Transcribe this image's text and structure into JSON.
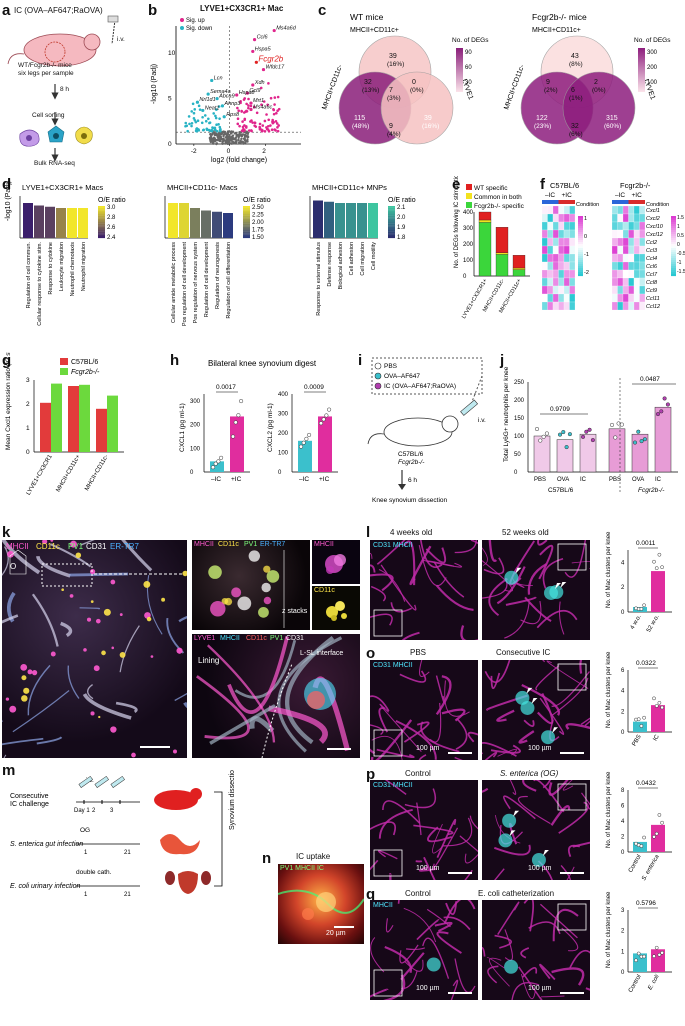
{
  "panels": {
    "a": {
      "label": "a",
      "title": "IC (OVA–AF647;RaOVA)",
      "mice": "WT/Fcgr2b-/- mice",
      "legs": "six legs per sample",
      "iv": "i.v.",
      "time": "8 h",
      "sort": "Cell sorting",
      "rnaseq": "Bulk RNA-seq"
    },
    "b": {
      "label": "b",
      "title": "LYVE1+CX3CR1+ Mac",
      "legend_up": "Sig. up",
      "legend_down": "Sig. down",
      "xlabel": "log2 (fold change)",
      "ylabel": "-log10 (Padj)",
      "genes": [
        "Ms4a6d",
        "Ccl6",
        "Hspa5",
        "Fcgr2b",
        "Wfdc17",
        "Lcn",
        "Xdh",
        "Hspa8",
        "Ccl9",
        "Atp8",
        "Abca9",
        "Sema4a",
        "Mrt1",
        "Ms4a6c",
        "Nrl1d1",
        "Neat1",
        "Jun",
        "Fos",
        "Hrnp",
        "Rps8",
        "Ahnp3"
      ],
      "xticks": [
        "-2",
        "0",
        "2"
      ],
      "yticks": [
        "0",
        "5",
        "10"
      ],
      "colors": {
        "up": "#e0258c",
        "down": "#29b3c4",
        "ns": "#666666",
        "fcgr2b": "#e02020"
      }
    },
    "c": {
      "label": "c",
      "wt_title": "WT mice",
      "ko_title": "Fcgr2b-/- mice",
      "set_top": "MHCII+CD11c+",
      "set_left": "MHCII+CD11c-",
      "set_right": "LYVE1",
      "legend_title": "No. of DEGs",
      "wt_values": [
        "39\n(16%)",
        "32\n(13%)",
        "0\n(0%)",
        "7\n(3%)",
        "115\n(48%)",
        "39\n(16%)",
        "9\n(4%)"
      ],
      "ko_values": [
        "43\n(8%)",
        "9\n(2%)",
        "2\n(0%)",
        "6\n(1%)",
        "122\n(23%)",
        "315\n(60%)",
        "32\n(6%)"
      ],
      "wt_ticks": [
        "90",
        "60",
        "30"
      ],
      "ko_ticks": [
        "300",
        "200",
        "100"
      ]
    },
    "d": {
      "label": "d",
      "ylabel": "-log10 (Padj)",
      "legend_title": "O/E ratio",
      "groups": [
        {
          "title": "LYVE1+CX3CR1+ Macs",
          "terms": [
            "Regulation of cell commun.",
            "Cellular response to cytokine stim.",
            "Response to cytokine",
            "Leukocyte migration",
            "Neutrophil chemotaxis",
            "Neutrophil migration"
          ],
          "ticks": [
            "3.0",
            "2.8",
            "2.6",
            "2.4"
          ]
        },
        {
          "title": "MHCII+CD11c- Macs",
          "terms": [
            "Cellular amide metabolic process",
            "Pos regulation of cell development",
            "Pos regulation of nervous system",
            "Regulation of cell development",
            "Regulation of neurogenesis",
            "Regulation of cell differentiation"
          ],
          "ticks": [
            "2.50",
            "2.25",
            "2.00",
            "1.75",
            "1.50"
          ]
        },
        {
          "title": "MHCII+CD11c+ MNPs",
          "terms": [
            "Response to external stimulus",
            "Defense response",
            "Biological adhesion",
            "Cell adhesion",
            "Cell migration",
            "Cell motility"
          ],
          "ticks": [
            "2.1",
            "2.0",
            "1.9",
            "1.8"
          ]
        }
      ]
    },
    "e": {
      "label": "e",
      "legend": [
        "WT specific",
        "Common in both",
        "Fcgr2b-/- specific"
      ],
      "ylabel": "No. of DEGs following IC stimulation",
      "categories": [
        "LYVE1+CX3CR1+",
        "MHCII+CD11c-",
        "MHCII+CD11c+"
      ],
      "yticks": [
        "0",
        "100",
        "200",
        "300",
        "400"
      ],
      "colors": [
        "#e02020",
        "#f2e21e",
        "#3bd63b"
      ]
    },
    "f": {
      "label": "f",
      "wt_title": "C57BL/6",
      "ko_title": "Fcgr2b-/-",
      "neg": "–IC",
      "pos": "+IC",
      "condition": "Condition",
      "genes": [
        "Cxcl1",
        "Cxcl2",
        "Cxcl10",
        "Cxcl12",
        "Ccl2",
        "Ccl3",
        "Ccl4",
        "Ccl6",
        "Ccl7",
        "Ccl8",
        "Ccl9",
        "Ccl11",
        "Ccl12"
      ],
      "wt_ticks": [
        "1",
        "0",
        "-1",
        "-2"
      ],
      "ko_ticks": [
        "1.5",
        "1",
        "0.5",
        "0",
        "-0.5",
        "-1",
        "-1.5"
      ]
    },
    "g": {
      "label": "g",
      "legend": [
        "C57BL/6",
        "Fcgr2b-/-"
      ],
      "ylabel": "Mean Cxcl1 expression ratio (IC stim/unstim)",
      "categories": [
        "LYVE1+CX3CR1",
        "MHCII+CD11c+",
        "MHCII+CD11c-"
      ],
      "yticks": [
        "0",
        "1",
        "2",
        "3"
      ]
    },
    "h": {
      "label": "h",
      "title": "Bilateral knee synovium digest",
      "cxcl1": {
        "ylabel": "CXCL1 (pg ml-1)",
        "p": "0.0017",
        "yticks": [
          "0",
          "100",
          "200",
          "300"
        ]
      },
      "cxcl2": {
        "ylabel": "CXCL2 (pg ml-1)",
        "p": "0.0009",
        "yticks": [
          "0",
          "100",
          "200",
          "300",
          "400"
        ]
      },
      "neg": "–IC",
      "pos": "+IC"
    },
    "i": {
      "label": "i",
      "legend": [
        "PBS",
        "OVA–AF647",
        "IC (OVA–AF647;RaOVA)"
      ],
      "iv": "i.v.",
      "mice": "C57BL/6",
      "mice2": "Fcgr2b-/-",
      "time": "6 h",
      "end": "Knee synovium dissection"
    },
    "j": {
      "label": "j",
      "ylabel": "Total Ly6G+ neutrophils per knee",
      "p1": "0.9709",
      "p2": "0.0487",
      "categories": [
        "PBS",
        "OVA",
        "IC",
        "PBS",
        "OVA",
        "IC"
      ],
      "groups": [
        "C57BL/6",
        "Fcgr2b-/-"
      ],
      "yticks": [
        "0",
        "50",
        "100",
        "150",
        "200",
        "250"
      ]
    },
    "k": {
      "label": "k",
      "markers": [
        "MHCII",
        "CD11c",
        "PV1",
        "CD31",
        "ER-TR7"
      ],
      "zstacks": "z stacks",
      "lining": "Lining",
      "interface": "L-SL interface",
      "o": "O",
      "markers2": [
        "LYVE1",
        "MHCII",
        "CD11c",
        "PV1",
        "CD31"
      ],
      "mhcii": "MHCII",
      "cd11c": "CD11c"
    },
    "l": {
      "label": "l",
      "left": "4 weeks old",
      "right": "52 weeks old",
      "ylabel": "No. of Mac clusters per knee",
      "p": "0.0011",
      "categories": [
        "4 w.o.",
        "52 w.o."
      ],
      "markers": "CD31 MHCII",
      "yticks": [
        "0",
        "2",
        "4"
      ]
    },
    "m": {
      "label": "m",
      "rows": [
        "Consecutive IC challenge",
        "S. enterica gut infection",
        "E. coli urinary infection"
      ],
      "iv": "i.v.",
      "og": "OG",
      "cath": "double cath.",
      "days1": [
        "Day 1",
        "2",
        "3"
      ],
      "d1": "1",
      "d21": "21",
      "end": "Synovium dissection"
    },
    "n": {
      "label": "n",
      "title": "IC uptake",
      "markers": "PV1 MHCII IC",
      "scale": "20 µm"
    },
    "o": {
      "label": "o",
      "left": "PBS",
      "right": "Consecutive IC",
      "ylabel": "No. of Mac clusters per knee",
      "p": "0.0322",
      "categories": [
        "PBS",
        "IC"
      ],
      "scale": "100 µm",
      "markers": "CD31 MHCII",
      "yticks": [
        "0",
        "2",
        "4",
        "6"
      ]
    },
    "p": {
      "label": "p",
      "left": "Control",
      "right": "S. enterica (OG)",
      "ylabel": "No. of Mac clusters per knee",
      "p": "0.0432",
      "categories": [
        "Control",
        "S. enterica"
      ],
      "scale": "100 µm",
      "markers": "CD31 MHCII",
      "yticks": [
        "0",
        "2",
        "4",
        "6",
        "8"
      ]
    },
    "q": {
      "label": "q",
      "left": "Control",
      "right": "E. coli catheterization",
      "ylabel": "No. of Mac clusters per knee",
      "p": "0.5796",
      "categories": [
        "Control",
        "E. coli"
      ],
      "scale": "100 µm",
      "markers": "MHCII",
      "yticks": [
        "0",
        "1",
        "2",
        "3"
      ]
    }
  },
  "chart_data": [
    {
      "panel": "b",
      "type": "scatter",
      "title": "LYVE1+CX3CR1+ Mac",
      "xlabel": "log2 (fold change)",
      "ylabel": "-log10 (Padj)",
      "xlim": [
        -3,
        4
      ],
      "ylim": [
        0,
        13
      ],
      "labeled_points": [
        {
          "gene": "Ms4a6d",
          "x": 2.5,
          "y": 12.5
        },
        {
          "gene": "Ccl6",
          "x": 1.4,
          "y": 11.5
        },
        {
          "gene": "Hspa5",
          "x": 1.3,
          "y": 10.2
        },
        {
          "gene": "Fcgr2b",
          "x": 1.5,
          "y": 9.0
        },
        {
          "gene": "Wfdc17",
          "x": 1.9,
          "y": 8.2
        },
        {
          "gene": "Lcn",
          "x": -1.0,
          "y": 7.0
        },
        {
          "gene": "Xdh",
          "x": 1.3,
          "y": 6.5
        },
        {
          "gene": "Ccl9",
          "x": 1.0,
          "y": 5.6
        },
        {
          "gene": "Hspa8",
          "x": 0.4,
          "y": 5.4
        },
        {
          "gene": "Mrt1",
          "x": 1.2,
          "y": 4.5
        },
        {
          "gene": "Ms4a6c",
          "x": 1.2,
          "y": 3.8
        },
        {
          "gene": "Sema4a",
          "x": -1.2,
          "y": 5.5
        },
        {
          "gene": "Abca9",
          "x": -0.7,
          "y": 5.0
        },
        {
          "gene": "Nrl1d1",
          "x": -1.8,
          "y": 4.6
        },
        {
          "gene": "Neat1",
          "x": -1.5,
          "y": 3.7
        },
        {
          "gene": "Ahnp3",
          "x": -0.4,
          "y": 4.2
        },
        {
          "gene": "Rps8",
          "x": -0.3,
          "y": 3.0
        }
      ]
    },
    {
      "panel": "d",
      "type": "bar",
      "title": "LYVE1+CX3CR1+ Macs",
      "categories": [
        "Regulation of cell commun.",
        "Cellular response to cytokine stim.",
        "Response to cytokine",
        "Leukocyte migration",
        "Neutrophil chemotaxis",
        "Neutrophil migration"
      ],
      "values": [
        1.4,
        1.3,
        1.25,
        1.2,
        1.2,
        1.2
      ],
      "oe": [
        2.4,
        2.5,
        2.5,
        2.7,
        3.0,
        3.0
      ]
    },
    {
      "panel": "d",
      "type": "bar",
      "title": "MHCII+CD11c- Macs",
      "categories": [
        "Cellular amide metabolic process",
        "Pos regulation of cell development",
        "Pos regulation of nervous system",
        "Regulation of cell development",
        "Regulation of neurogenesis",
        "Regulation of cell differentiation"
      ],
      "values": [
        1.4,
        1.4,
        1.2,
        1.1,
        1.05,
        1.0
      ],
      "oe": [
        2.5,
        2.4,
        1.9,
        1.8,
        1.6,
        1.5
      ]
    },
    {
      "panel": "d",
      "type": "bar",
      "title": "MHCII+CD11c+ MNPs",
      "categories": [
        "Response to external stimulus",
        "Defense response",
        "Biological adhesion",
        "Cell adhesion",
        "Cell migration",
        "Cell motility"
      ],
      "values": [
        1.5,
        1.45,
        1.4,
        1.4,
        1.4,
        1.4
      ],
      "oe": [
        1.8,
        1.9,
        2.0,
        2.0,
        2.0,
        2.1
      ]
    },
    {
      "panel": "e",
      "type": "bar",
      "stacked": true,
      "categories": [
        "LYVE1+CX3CR1+",
        "MHCII+CD11c-",
        "MHCII+CD11c+"
      ],
      "series": [
        {
          "name": "Fcgr2b-/- specific",
          "values": [
            335,
            135,
            40
          ]
        },
        {
          "name": "Common in both",
          "values": [
            15,
            10,
            10
          ]
        },
        {
          "name": "WT specific",
          "values": [
            50,
            160,
            80
          ]
        }
      ],
      "ylim": [
        0,
        400
      ]
    },
    {
      "panel": "g",
      "type": "bar",
      "categories": [
        "LYVE1+CX3CR1",
        "MHCII+CD11c+",
        "MHCII+CD11c-"
      ],
      "series": [
        {
          "name": "C57BL/6",
          "values": [
            2.05,
            2.75,
            1.8
          ]
        },
        {
          "name": "Fcgr2b-/-",
          "values": [
            2.85,
            2.8,
            2.35
          ]
        }
      ],
      "ylim": [
        0,
        3
      ]
    },
    {
      "panel": "h",
      "type": "bar",
      "title": "CXCL1",
      "categories": [
        "–IC",
        "+IC"
      ],
      "values": [
        45,
        235
      ],
      "points": [
        [
          20,
          35,
          45,
          60
        ],
        [
          150,
          210,
          240,
          300
        ]
      ],
      "ylim": [
        0,
        330
      ]
    },
    {
      "panel": "h",
      "type": "bar",
      "title": "CXCL2",
      "categories": [
        "–IC",
        "+IC"
      ],
      "values": [
        160,
        285
      ],
      "points": [
        [
          130,
          150,
          170,
          190
        ],
        [
          250,
          270,
          290,
          320
        ]
      ],
      "ylim": [
        0,
        400
      ]
    },
    {
      "panel": "j",
      "type": "bar",
      "categories": [
        "PBS",
        "OVA",
        "IC",
        "PBS",
        "OVA",
        "IC"
      ],
      "values": [
        100,
        90,
        105,
        120,
        105,
        180
      ],
      "ylim": [
        0,
        250
      ]
    },
    {
      "panel": "l",
      "type": "bar",
      "categories": [
        "4 w.o.",
        "52 w.o."
      ],
      "values": [
        0.4,
        3.3
      ],
      "ylim": [
        0,
        5
      ]
    },
    {
      "panel": "o",
      "type": "bar",
      "categories": [
        "PBS",
        "IC"
      ],
      "values": [
        1.0,
        2.6
      ],
      "ylim": [
        0,
        6
      ]
    },
    {
      "panel": "p",
      "type": "bar",
      "categories": [
        "Control",
        "S. enterica"
      ],
      "values": [
        1.3,
        3.5
      ],
      "ylim": [
        0,
        8
      ]
    },
    {
      "panel": "q",
      "type": "bar",
      "categories": [
        "Control",
        "E. coli"
      ],
      "values": [
        0.9,
        1.1
      ],
      "ylim": [
        0,
        3
      ]
    }
  ]
}
